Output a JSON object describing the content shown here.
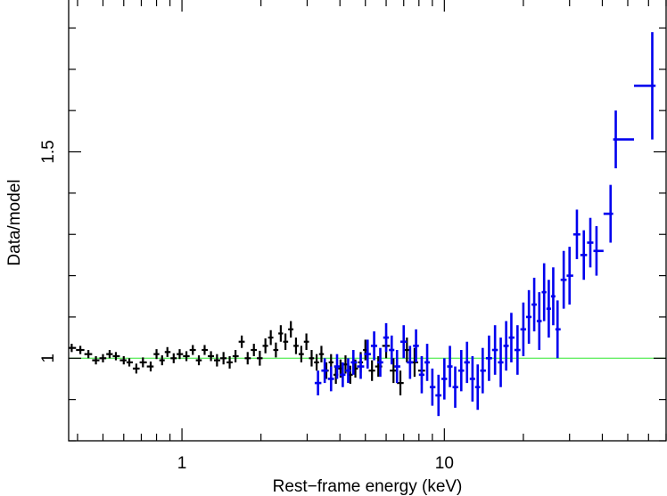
{
  "chart_data": {
    "type": "scatter",
    "title": "",
    "xlabel": "Rest−frame energy (keV)",
    "ylabel": "Data/model",
    "xscale": "log",
    "xlim": [
      0.37,
      70
    ],
    "ylim": [
      0.8,
      1.87
    ],
    "x_tick_labels": [
      "1",
      "10"
    ],
    "x_tick_values": [
      1,
      10
    ],
    "y_tick_labels": [
      "1",
      "1.5"
    ],
    "y_tick_values": [
      1,
      1.5
    ],
    "grid": false,
    "legend": "none",
    "reference_line": {
      "y": 1.0,
      "color": "#66ee66"
    },
    "colors": {
      "black_series": "#000000",
      "blue_series": "#0000ee"
    },
    "series": [
      {
        "color": "#000000",
        "points": [
          [
            0.38,
            1.025,
            0.01
          ],
          [
            0.41,
            1.02,
            0.01
          ],
          [
            0.44,
            1.01,
            0.01
          ],
          [
            0.47,
            0.995,
            0.01
          ],
          [
            0.5,
            1.0,
            0.01
          ],
          [
            0.53,
            1.01,
            0.01
          ],
          [
            0.56,
            1.005,
            0.01
          ],
          [
            0.6,
            0.995,
            0.01
          ],
          [
            0.63,
            0.99,
            0.01
          ],
          [
            0.67,
            0.975,
            0.012
          ],
          [
            0.71,
            0.99,
            0.012
          ],
          [
            0.76,
            0.98,
            0.012
          ],
          [
            0.8,
            1.01,
            0.012
          ],
          [
            0.84,
            0.995,
            0.012
          ],
          [
            0.88,
            1.015,
            0.012
          ],
          [
            0.93,
            1.0,
            0.012
          ],
          [
            0.98,
            1.01,
            0.012
          ],
          [
            1.04,
            1.005,
            0.012
          ],
          [
            1.1,
            1.02,
            0.012
          ],
          [
            1.16,
            0.995,
            0.012
          ],
          [
            1.22,
            1.02,
            0.012
          ],
          [
            1.29,
            1.005,
            0.012
          ],
          [
            1.36,
            0.995,
            0.015
          ],
          [
            1.44,
            1.0,
            0.015
          ],
          [
            1.52,
            0.99,
            0.015
          ],
          [
            1.6,
            1.005,
            0.015
          ],
          [
            1.69,
            1.04,
            0.015
          ],
          [
            1.78,
            1.0,
            0.015
          ],
          [
            1.88,
            1.02,
            0.015
          ],
          [
            1.98,
            1.0,
            0.018
          ],
          [
            2.08,
            1.03,
            0.018
          ],
          [
            2.18,
            1.05,
            0.018
          ],
          [
            2.28,
            1.02,
            0.018
          ],
          [
            2.38,
            1.06,
            0.02
          ],
          [
            2.48,
            1.04,
            0.02
          ],
          [
            2.6,
            1.07,
            0.02
          ],
          [
            2.72,
            1.03,
            0.02
          ],
          [
            2.85,
            1.01,
            0.02
          ],
          [
            2.98,
            1.04,
            0.02
          ],
          [
            3.12,
            1.0,
            0.02
          ],
          [
            3.26,
            0.99,
            0.02
          ],
          [
            3.4,
            1.01,
            0.02
          ],
          [
            3.55,
            0.97,
            0.02
          ],
          [
            3.7,
            0.99,
            0.02
          ],
          [
            3.86,
            0.96,
            0.022
          ],
          [
            4.02,
            0.975,
            0.022
          ],
          [
            4.2,
            0.985,
            0.022
          ],
          [
            4.38,
            0.96,
            0.022
          ],
          [
            4.58,
            0.975,
            0.022
          ],
          [
            4.8,
            0.99,
            0.025
          ],
          [
            5.0,
            1.02,
            0.025
          ],
          [
            5.3,
            0.97,
            0.025
          ],
          [
            5.6,
            0.98,
            0.025
          ],
          [
            6.0,
            1.03,
            0.03
          ],
          [
            6.4,
            0.97,
            0.03
          ],
          [
            6.8,
            0.94,
            0.03
          ],
          [
            7.2,
            1.02,
            0.03
          ],
          [
            7.7,
            0.99,
            0.035
          ],
          [
            8.2,
            0.97,
            0.035
          ]
        ]
      },
      {
        "color": "#0000ee",
        "points": [
          [
            3.3,
            0.94,
            0.03
          ],
          [
            3.5,
            0.97,
            0.03
          ],
          [
            3.7,
            0.95,
            0.03
          ],
          [
            3.9,
            0.98,
            0.03
          ],
          [
            4.1,
            0.96,
            0.03
          ],
          [
            4.3,
            0.97,
            0.03
          ],
          [
            4.5,
            0.99,
            0.03
          ],
          [
            4.8,
            0.98,
            0.03
          ],
          [
            5.1,
            1.01,
            0.035
          ],
          [
            5.4,
            1.03,
            0.035
          ],
          [
            5.7,
            0.99,
            0.035
          ],
          [
            6.0,
            1.05,
            0.035
          ],
          [
            6.3,
            1.02,
            0.035
          ],
          [
            6.6,
            0.98,
            0.04
          ],
          [
            7.0,
            1.04,
            0.04
          ],
          [
            7.4,
            0.99,
            0.04
          ],
          [
            7.8,
            1.03,
            0.04
          ],
          [
            8.2,
            0.96,
            0.045
          ],
          [
            8.6,
            0.99,
            0.045
          ],
          [
            9.0,
            0.93,
            0.045
          ],
          [
            9.5,
            0.91,
            0.05
          ],
          [
            10.0,
            0.95,
            0.05
          ],
          [
            10.5,
            0.98,
            0.05
          ],
          [
            11.0,
            0.93,
            0.05
          ],
          [
            11.6,
            0.97,
            0.05
          ],
          [
            12.2,
            0.99,
            0.05
          ],
          [
            12.8,
            0.95,
            0.055
          ],
          [
            13.4,
            0.93,
            0.055
          ],
          [
            14.0,
            0.97,
            0.055
          ],
          [
            14.8,
            1.0,
            0.055
          ],
          [
            15.6,
            1.02,
            0.06
          ],
          [
            16.4,
            0.99,
            0.06
          ],
          [
            17.2,
            1.03,
            0.06
          ],
          [
            18.0,
            1.05,
            0.06
          ],
          [
            19.0,
            1.02,
            0.06
          ],
          [
            20.0,
            1.07,
            0.065
          ],
          [
            21.0,
            1.1,
            0.065
          ],
          [
            22.0,
            1.13,
            0.065
          ],
          [
            23.0,
            1.09,
            0.07
          ],
          [
            24.0,
            1.16,
            0.07
          ],
          [
            25.0,
            1.12,
            0.07
          ],
          [
            26.0,
            1.15,
            0.07
          ],
          [
            27.0,
            1.07,
            0.07
          ],
          [
            28.5,
            1.19,
            0.07
          ],
          [
            30.0,
            1.2,
            0.07
          ],
          [
            32.0,
            1.3,
            0.06
          ],
          [
            34.0,
            1.25,
            0.06
          ],
          [
            36.0,
            1.28,
            0.06
          ],
          [
            38.0,
            1.26,
            0.06
          ],
          [
            43.0,
            1.35,
            0.07
          ],
          [
            45.0,
            1.53,
            0.07
          ],
          [
            62.0,
            1.66,
            0.13
          ]
        ]
      }
    ]
  }
}
